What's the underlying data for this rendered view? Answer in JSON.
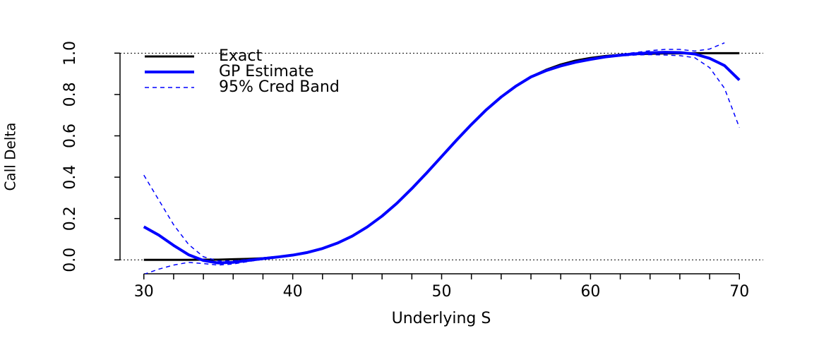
{
  "chart_data": {
    "type": "line",
    "xlabel": "Underlying S",
    "ylabel": "Call Delta",
    "x": [
      30,
      31,
      32,
      33,
      34,
      35,
      36,
      37,
      38,
      39,
      40,
      41,
      42,
      43,
      44,
      45,
      46,
      47,
      48,
      49,
      50,
      51,
      52,
      53,
      54,
      55,
      56,
      57,
      58,
      59,
      60,
      61,
      62,
      63,
      64,
      65,
      66,
      67,
      68,
      69,
      70
    ],
    "series": [
      {
        "name": "Exact",
        "color": "#000000",
        "width": 3,
        "dash": "solid",
        "values": [
          0,
          0,
          0,
          0,
          0.001,
          0.001,
          0.003,
          0.005,
          0.008,
          0.014,
          0.023,
          0.036,
          0.055,
          0.081,
          0.115,
          0.159,
          0.212,
          0.274,
          0.345,
          0.421,
          0.5,
          0.579,
          0.655,
          0.726,
          0.788,
          0.841,
          0.885,
          0.919,
          0.945,
          0.964,
          0.977,
          0.986,
          0.992,
          0.995,
          0.997,
          0.999,
          0.999,
          1,
          1,
          1,
          1
        ]
      },
      {
        "name": "GP Estimate",
        "color": "#0000ff",
        "width": 4,
        "dash": "solid",
        "values": [
          0.16,
          0.12,
          0.07,
          0.025,
          -0.003,
          -0.015,
          -0.012,
          -0.003,
          0.006,
          0.014,
          0.023,
          0.036,
          0.055,
          0.081,
          0.115,
          0.159,
          0.212,
          0.274,
          0.345,
          0.421,
          0.5,
          0.579,
          0.655,
          0.726,
          0.788,
          0.841,
          0.885,
          0.915,
          0.938,
          0.956,
          0.97,
          0.982,
          0.99,
          0.997,
          1.002,
          1.004,
          1.003,
          0.996,
          0.975,
          0.94,
          0.87
        ]
      },
      {
        "name": "95% Cred Band",
        "color": "#0000ff",
        "width": 1.5,
        "dash": "dashed",
        "values": [
          0.41,
          0.29,
          0.17,
          0.075,
          0.015,
          -0.005,
          -0.005,
          0.002,
          0.01,
          0.017,
          0.026,
          0.039,
          0.058,
          0.084,
          0.118,
          0.162,
          0.215,
          0.277,
          0.348,
          0.424,
          0.503,
          0.582,
          0.658,
          0.729,
          0.791,
          0.844,
          0.888,
          0.918,
          0.941,
          0.959,
          0.973,
          0.985,
          0.994,
          1.003,
          1.012,
          1.018,
          1.018,
          1.01,
          1.02,
          1.05,
          null
        ]
      },
      {
        "color": "#0000ff",
        "width": 1.5,
        "dash": "dashed",
        "values": [
          -0.07,
          -0.045,
          -0.025,
          -0.012,
          -0.018,
          -0.025,
          -0.02,
          -0.008,
          0.002,
          0.011,
          0.02,
          0.033,
          0.052,
          0.078,
          0.112,
          0.156,
          0.209,
          0.271,
          0.342,
          0.418,
          0.497,
          0.576,
          0.652,
          0.723,
          0.785,
          0.838,
          0.882,
          0.912,
          0.935,
          0.953,
          0.967,
          0.979,
          0.986,
          0.991,
          0.993,
          0.991,
          0.988,
          0.978,
          0.93,
          0.83,
          0.64
        ]
      }
    ],
    "xlim": [
      28.4,
      71.6
    ],
    "ylim": [
      -0.04,
      1.04
    ],
    "xticks": [
      30,
      40,
      50,
      60,
      70
    ],
    "xminorticks": [
      32,
      34,
      36,
      38,
      42,
      44,
      46,
      48,
      52,
      54,
      56,
      58,
      62,
      64,
      66,
      68
    ],
    "yticks": [
      {
        "value": 0,
        "label": "0.0"
      },
      {
        "value": 0.2,
        "label": "0.2"
      },
      {
        "value": 0.4,
        "label": "0.4"
      },
      {
        "value": 0.6,
        "label": "0.6"
      },
      {
        "value": 0.8,
        "label": "0.8"
      },
      {
        "value": 1,
        "label": "1.0"
      }
    ],
    "hlines": [
      0,
      1
    ],
    "legend": "top-left"
  }
}
